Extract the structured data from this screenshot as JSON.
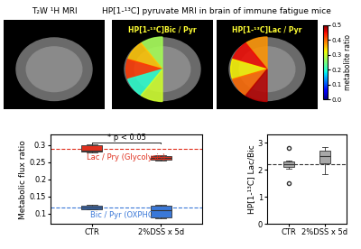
{
  "header": {
    "left": "T₂W ¹H MRI",
    "right": "HP[1-¹³C] pyruvate MRI in brain of immune fatigue mice"
  },
  "overlays": [
    "HP[1-¹³C]Bic / Pyr",
    "HP[1-¹³C]Lac / Pyr"
  ],
  "colorbar": {
    "label": "metabolite ratio",
    "range": [
      0,
      0.5
    ],
    "ticks": [
      {
        "value": 0,
        "label": "0.0"
      },
      0.1,
      0.2,
      0.3,
      0.4,
      0.5
    ]
  },
  "chart_data": [
    {
      "type": "box",
      "categories": [
        "CTR",
        "2%DSS x 5d"
      ],
      "ylabel": "Metabolic flux ratio",
      "ylim": [
        0.07,
        0.33
      ],
      "yticks": [
        0.1,
        0.15,
        0.2,
        0.25,
        0.3
      ],
      "significance": "* p < 0.05",
      "series": [
        {
          "name": "Lac / Pry (Glycolysis)",
          "color": "#e0301e",
          "reference": 0.288,
          "boxes": [
            {
              "whislo": 0.278,
              "q1": 0.28,
              "med": 0.283,
              "q3": 0.3,
              "whishi": 0.302,
              "fliers": []
            },
            {
              "whislo": 0.255,
              "q1": 0.258,
              "med": 0.263,
              "q3": 0.268,
              "whishi": 0.27,
              "fliers": []
            }
          ]
        },
        {
          "name": "Bic / Pyr (OXPHOS)",
          "color": "#3a78d8",
          "reference": 0.118,
          "boxes": [
            {
              "whislo": 0.112,
              "q1": 0.114,
              "med": 0.118,
              "q3": 0.124,
              "whishi": 0.126,
              "fliers": []
            },
            {
              "whislo": 0.088,
              "q1": 0.09,
              "med": 0.11,
              "q3": 0.124,
              "whishi": 0.126,
              "fliers": []
            }
          ]
        }
      ]
    },
    {
      "type": "box",
      "categories": [
        "CTR",
        "2%DSS x 5d"
      ],
      "ylabel": "HP[1-¹³C] Lac/Bic",
      "ylim": [
        0,
        3.3
      ],
      "yticks": [
        0,
        1,
        2,
        3
      ],
      "series": [
        {
          "color": "#a8a8a8",
          "reference": 2.2,
          "boxes": [
            {
              "whislo": 2.05,
              "q1": 2.1,
              "med": 2.2,
              "q3": 2.3,
              "whishi": 2.35,
              "fliers": [
                2.8,
                1.5
              ]
            },
            {
              "whislo": 1.85,
              "q1": 2.25,
              "med": 2.5,
              "q3": 2.7,
              "whishi": 2.85,
              "fliers": []
            }
          ]
        }
      ]
    }
  ]
}
